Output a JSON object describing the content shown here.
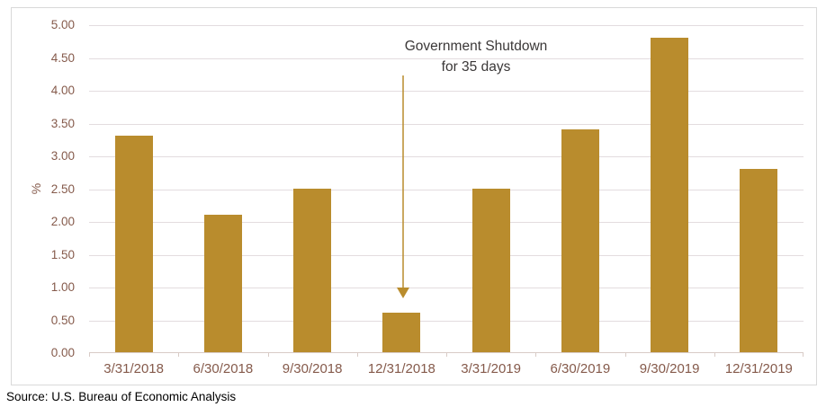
{
  "chart_data": {
    "type": "bar",
    "categories": [
      "3/31/2018",
      "6/30/2018",
      "9/30/2018",
      "12/31/2018",
      "3/31/2019",
      "6/30/2019",
      "9/30/2019",
      "12/31/2019"
    ],
    "values": [
      3.3,
      2.1,
      2.5,
      0.6,
      2.5,
      3.4,
      4.8,
      2.8
    ],
    "title": "",
    "xlabel": "",
    "ylabel": "%",
    "ylim": [
      0,
      5
    ],
    "ytick_step": 0.5,
    "ytick_labels": [
      "0.00",
      "0.50",
      "1.00",
      "1.50",
      "2.00",
      "2.50",
      "3.00",
      "3.50",
      "4.00",
      "4.50",
      "5.00"
    ],
    "grid": true,
    "legend": "none",
    "bar_color": "#B98C2D",
    "annotation": {
      "line1": "Government Shutdown",
      "line2": "for 35 days",
      "target_category": "12/31/2018"
    }
  },
  "source": "Source: U.S. Bureau of Economic Analysis",
  "colors": {
    "bar": "#B98C2D",
    "arrow": "#B98C2D",
    "axis_label": "#855A4B",
    "gridline": "#E3DCDF",
    "axis_line": "#D8CBC6",
    "frame_border": "#D9D9D9",
    "annotation_text": "#3B3838"
  }
}
